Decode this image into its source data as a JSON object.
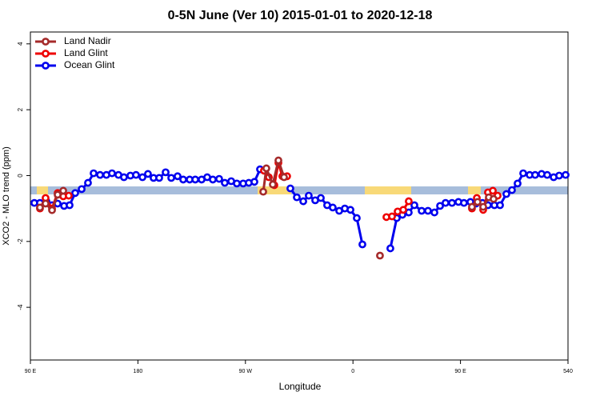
{
  "chart_data": {
    "type": "line",
    "title": "0-5N June (Ver 10)   2015-01-01 to 2020-12-18",
    "x_label": "Longitude",
    "y_label": "XCO2 - MLO trend (ppm)",
    "xlim": [
      90,
      540
    ],
    "xticks": [
      {
        "value": 90,
        "label": "90 E"
      },
      180,
      {
        "value": 270,
        "label": "90 W"
      },
      {
        "value": 360,
        "label": "0"
      },
      {
        "value": 450,
        "label": "90 E"
      },
      540
    ],
    "ylim": [
      -5.6,
      4.36
    ],
    "yticks": [
      -4,
      -2,
      0,
      2,
      4
    ],
    "grid": false,
    "legend": "top-left",
    "series": [
      {
        "name": "Land Nadir",
        "color": "#a52a2a",
        "x": [
          98.0,
          102.7,
          108.1,
          112.8,
          117.5,
          null,
          284.9,
          287.5,
          292.9,
          297.6,
          302.3,
          null,
          382.6,
          null,
          459.6,
          464.3,
          469.0,
          473.7,
          477.7
        ],
        "values": [
          -0.97,
          -0.85,
          -1.05,
          -0.58,
          -0.46,
          null,
          -0.49,
          0.22,
          -0.27,
          0.46,
          -0.05,
          null,
          -2.43,
          null,
          -0.95,
          -0.8,
          -0.95,
          -0.66,
          -0.71
        ]
      },
      {
        "name": "Land Glint",
        "color": "#ee0000",
        "x": [
          98.0,
          102.7,
          108.1,
          112.8,
          117.5,
          122.1,
          null,
          285.5,
          289.6,
          294.2,
          297.6,
          300.9,
          304.9,
          null,
          388.0,
          392.7,
          397.4,
          402.1,
          406.7,
          null,
          459.6,
          463.7,
          469.0,
          473.0,
          477.1,
          481.1
        ],
        "values": [
          -1.0,
          -0.68,
          -1.0,
          -0.53,
          -0.63,
          -0.61,
          null,
          0.15,
          -0.05,
          -0.29,
          0.39,
          -0.02,
          -0.02,
          null,
          -1.26,
          -1.24,
          -1.09,
          -1.04,
          -0.78,
          null,
          -1.0,
          -0.68,
          -1.04,
          -0.51,
          -0.46,
          -0.61
        ]
      },
      {
        "name": "Ocean Glint",
        "color": "#0000ee",
        "x": [
          93.3,
          98.0,
          103.4,
          108.1,
          112.8,
          118.2,
          122.8,
          127.5,
          132.9,
          138.2,
          142.9,
          148.3,
          153.6,
          158.3,
          163.7,
          168.3,
          173.7,
          178.4,
          183.8,
          188.4,
          193.1,
          197.8,
          203.2,
          207.9,
          213.2,
          217.9,
          223.3,
          228.0,
          233.3,
          238.0,
          242.7,
          248.0,
          252.7,
          258.1,
          262.8,
          268.1,
          272.8,
          277.5,
          282.2,
          null,
          307.6,
          313.0,
          318.4,
          323.0,
          328.4,
          333.1,
          338.4,
          343.1,
          348.5,
          353.2,
          357.9,
          363.2,
          367.9,
          null,
          391.3,
          396.7,
          401.4,
          406.7,
          411.4,
          417.5,
          422.8,
          428.2,
          432.9,
          437.5,
          442.9,
          448.3,
          452.9,
          458.3,
          463.0,
          468.4,
          473.0,
          478.4,
          483.1,
          488.4,
          493.1,
          497.8,
          502.5,
          507.9,
          512.5,
          517.9,
          522.6,
          528.0,
          532.6,
          538.0
        ],
        "values": [
          -0.83,
          -0.83,
          -0.78,
          -0.9,
          -0.85,
          -0.92,
          -0.9,
          -0.53,
          -0.41,
          -0.22,
          0.07,
          0.02,
          0.02,
          0.07,
          0.02,
          -0.05,
          0,
          0.02,
          -0.05,
          0.05,
          -0.07,
          -0.07,
          0.1,
          -0.07,
          -0.02,
          -0.12,
          -0.12,
          -0.12,
          -0.12,
          -0.05,
          -0.12,
          -0.1,
          -0.22,
          -0.17,
          -0.24,
          -0.24,
          -0.22,
          -0.19,
          0.19,
          null,
          -0.39,
          -0.66,
          -0.78,
          -0.61,
          -0.75,
          -0.68,
          -0.9,
          -0.97,
          -1.07,
          -1.0,
          -1.04,
          -1.29,
          -2.09,
          null,
          -2.21,
          -1.29,
          -1.19,
          -1.12,
          -0.9,
          -1.07,
          -1.07,
          -1.12,
          -0.92,
          -0.83,
          -0.83,
          -0.8,
          -0.83,
          -0.8,
          -0.85,
          -0.83,
          -0.9,
          -0.9,
          -0.9,
          -0.56,
          -0.44,
          -0.24,
          0.07,
          0.02,
          0.02,
          0.05,
          0.02,
          -0.05,
          0,
          0.02
        ]
      }
    ]
  }
}
